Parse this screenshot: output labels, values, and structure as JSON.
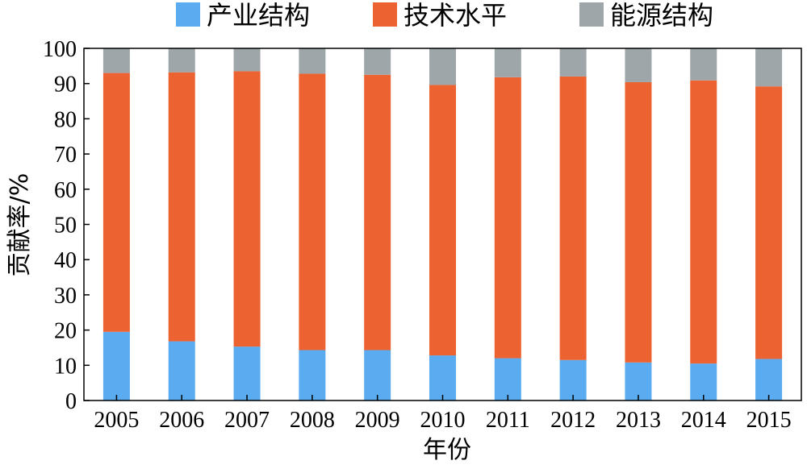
{
  "chart_data": {
    "type": "bar",
    "stacked": true,
    "categories": [
      "2005",
      "2006",
      "2007",
      "2008",
      "2009",
      "2010",
      "2011",
      "2012",
      "2013",
      "2014",
      "2015"
    ],
    "series": [
      {
        "name": "产业结构",
        "color": "#5aabf0",
        "values": [
          19.5,
          16.8,
          15.3,
          14.3,
          14.3,
          12.8,
          12.0,
          11.5,
          10.8,
          10.5,
          11.8
        ]
      },
      {
        "name": "技术水平",
        "color": "#ec6231",
        "values": [
          73.5,
          76.4,
          78.2,
          78.5,
          78.2,
          76.8,
          79.8,
          80.5,
          79.6,
          80.4,
          77.4
        ]
      },
      {
        "name": "能源结构",
        "color": "#9ea6a9",
        "values": [
          7.0,
          6.8,
          6.5,
          7.2,
          7.5,
          10.4,
          8.2,
          8.0,
          9.6,
          9.1,
          10.8
        ]
      }
    ],
    "xlabel": "年份",
    "ylabel": "贡献率/%",
    "ylim": [
      0,
      100
    ],
    "yticks": [
      "0",
      "10",
      "20",
      "30",
      "40",
      "50",
      "60",
      "70",
      "80",
      "90",
      "100"
    ],
    "legend_position": "top",
    "grid": false
  }
}
